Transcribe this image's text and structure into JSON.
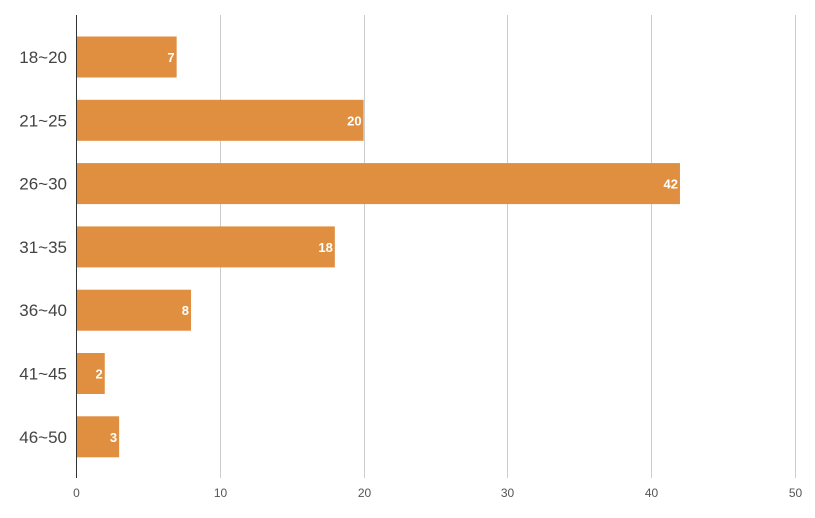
{
  "chart_data": {
    "type": "bar",
    "orientation": "horizontal",
    "title": "",
    "xlabel": "",
    "ylabel": "",
    "categories": [
      "18~20",
      "21~25",
      "26~30",
      "31~35",
      "36~40",
      "41~45",
      "46~50"
    ],
    "values": [
      7,
      20,
      42,
      18,
      8,
      2,
      3
    ],
    "xlim": [
      0,
      50
    ],
    "xticks": [
      0,
      10,
      20,
      30,
      40,
      50
    ],
    "grid": true,
    "legend": "none",
    "bar_color": "#df8f3f",
    "data_labels": true
  }
}
